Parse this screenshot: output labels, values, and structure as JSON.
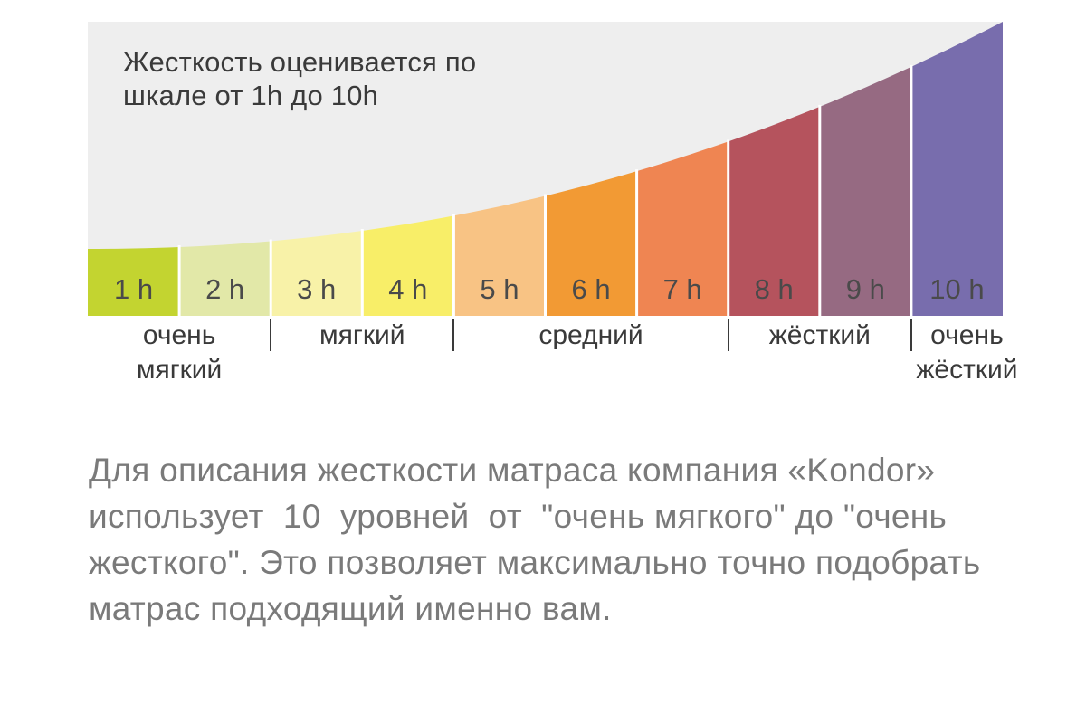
{
  "chart_data": {
    "type": "bar",
    "title_lines": [
      "Жесткость оценивается по",
      "шкале от 1h до 10h"
    ],
    "categories": [
      "1 h",
      "2 h",
      "3 h",
      "4 h",
      "5 h",
      "6 h",
      "7 h",
      "8 h",
      "9 h",
      "10 h"
    ],
    "values": [
      1,
      2,
      3,
      4,
      5,
      6,
      7,
      8,
      9,
      10
    ],
    "colors": [
      "#c3d430",
      "#e2e8a8",
      "#f8f2a8",
      "#f8ee68",
      "#f8c384",
      "#f29a34",
      "#ef8552",
      "#b5535d",
      "#966a82",
      "#786dad"
    ],
    "background_color": "#eeeeee",
    "groups": [
      {
        "lines": [
          "очень",
          "мягкий"
        ],
        "from": 1,
        "to": 2
      },
      {
        "lines": [
          "мягкий"
        ],
        "from": 3,
        "to": 4
      },
      {
        "lines": [
          "средний"
        ],
        "from": 5,
        "to": 7
      },
      {
        "lines": [
          "жёсткий"
        ],
        "from": 8,
        "to": 9
      },
      {
        "lines": [
          "очень",
          "жёсткий"
        ],
        "from": 10,
        "to": 10
      }
    ]
  },
  "description_lines": [
    "Для описания жесткости матраса компания «Kondor»",
    "использует  10  уровней  от  \"очень мягкого\" до \"очень",
    "жесткого\". Это позволяет максимально точно подобрать",
    "матрас подходящий именно вам."
  ]
}
